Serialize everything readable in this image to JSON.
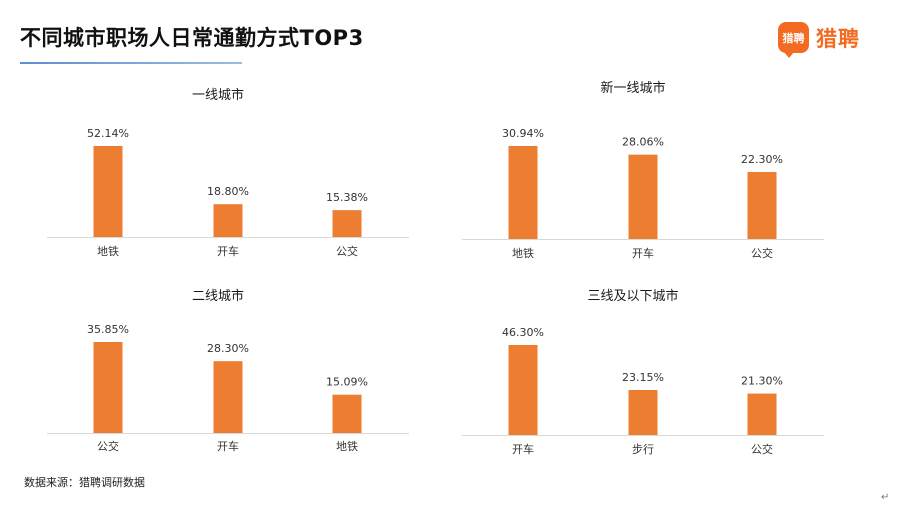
{
  "page": {
    "title": "不同城市职场人日常通勤方式TOP3",
    "logo_badge": "猎聘",
    "logo_text": "猎聘",
    "source_note": "数据来源：猎聘调研数据",
    "return_mark": "↵"
  },
  "colors": {
    "bar": "#ED7D31",
    "accent_rule": "#5B8FD1",
    "logo": "#F26B21",
    "axis": "#D9D9D9"
  },
  "chart_data": [
    {
      "type": "bar",
      "title": "一线城市",
      "categories": [
        "地铁",
        "开车",
        "公交"
      ],
      "values": [
        52.14,
        18.8,
        15.38
      ],
      "value_labels": [
        "52.14%",
        "18.80%",
        "15.38%"
      ],
      "xlabel": "",
      "ylabel": "",
      "ylim": [
        0,
        52.14
      ],
      "grid": false
    },
    {
      "type": "bar",
      "title": "新一线城市",
      "categories": [
        "地铁",
        "开车",
        "公交"
      ],
      "values": [
        30.94,
        28.06,
        22.3
      ],
      "value_labels": [
        "30.94%",
        "28.06%",
        "22.30%"
      ],
      "xlabel": "",
      "ylabel": "",
      "ylim": [
        0,
        52.14
      ],
      "grid": false
    },
    {
      "type": "bar",
      "title": "二线城市",
      "categories": [
        "公交",
        "开车",
        "地铁"
      ],
      "values": [
        35.85,
        28.3,
        15.09
      ],
      "value_labels": [
        "35.85%",
        "28.30%",
        "15.09%"
      ],
      "xlabel": "",
      "ylabel": "",
      "ylim": [
        0,
        52.14
      ],
      "grid": false
    },
    {
      "type": "bar",
      "title": "三线及以下城市",
      "categories": [
        "开车",
        "步行",
        "公交"
      ],
      "values": [
        46.3,
        23.15,
        21.3
      ],
      "value_labels": [
        "46.30%",
        "23.15%",
        "21.30%"
      ],
      "xlabel": "",
      "ylabel": "",
      "ylim": [
        0,
        52.14
      ],
      "grid": false
    }
  ]
}
